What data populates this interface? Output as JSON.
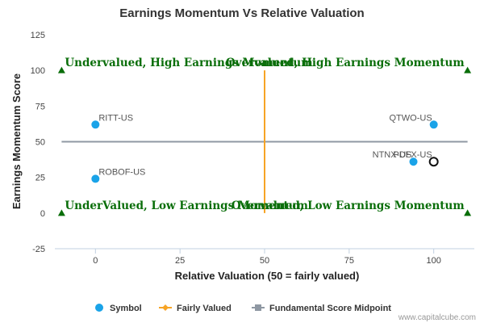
{
  "chart_data": {
    "type": "scatter",
    "title": "Earnings Momentum Vs Relative Valuation",
    "xlabel": "Relative Valuation (50 = fairly valued)",
    "ylabel": "Earnings Momentum Score",
    "xlim": [
      -12,
      112
    ],
    "ylim": [
      -25,
      125
    ],
    "x_ticks": [
      0,
      25,
      50,
      75,
      100
    ],
    "y_ticks": [
      -25,
      0,
      25,
      50,
      75,
      100,
      125
    ],
    "grid": false,
    "legend_position": "bottom",
    "points": [
      {
        "label": "RITT-US",
        "x": 0,
        "y": 62,
        "highlight": false
      },
      {
        "label": "ROBOF-US",
        "x": 0,
        "y": 24,
        "highlight": false
      },
      {
        "label": "QTWO-US",
        "x": 100,
        "y": 62,
        "highlight": false
      },
      {
        "label": "NTNX-US",
        "x": 94,
        "y": 36,
        "highlight": false
      },
      {
        "label": "PDFX-US",
        "x": 100,
        "y": 36,
        "highlight": true
      }
    ],
    "fairly_valued_line": {
      "x": 50,
      "y_range": [
        0,
        100
      ]
    },
    "midpoint_line": {
      "y": 50,
      "x_range": [
        -10,
        110
      ]
    },
    "quadrant_labels": [
      {
        "text": "Undervalued, High Earnings Momentum",
        "x": -10,
        "y": 100,
        "anchor": "start"
      },
      {
        "text": "Overvalued, High Earnings Momentum",
        "x": 110,
        "y": 100,
        "anchor": "end"
      },
      {
        "text": "UnderValued, Low Earnings Momentum",
        "x": -10,
        "y": 0,
        "anchor": "start"
      },
      {
        "text": "Overvalued, Low Earnings Momentum",
        "x": 110,
        "y": 0,
        "anchor": "end"
      }
    ],
    "corner_markers": [
      {
        "x": -10,
        "y": 100
      },
      {
        "x": 110,
        "y": 100
      },
      {
        "x": -10,
        "y": 0
      },
      {
        "x": 110,
        "y": 0
      }
    ],
    "legend": [
      {
        "name": "Symbol",
        "symbol": "circle"
      },
      {
        "name": "Fairly Valued",
        "symbol": "line-diamond"
      },
      {
        "name": "Fundamental Score Midpoint",
        "symbol": "line-square"
      }
    ],
    "colors": {
      "point": "#1aa3e8",
      "highlight_stroke": "#111111",
      "fair_line": "#f7a425",
      "midpoint_line": "#8f98a3",
      "quadrant_text": "#0a6e0a",
      "marker": "#0a6e0a",
      "axis": "#c0d0e0"
    }
  },
  "credit": "www.capitalcube.com"
}
